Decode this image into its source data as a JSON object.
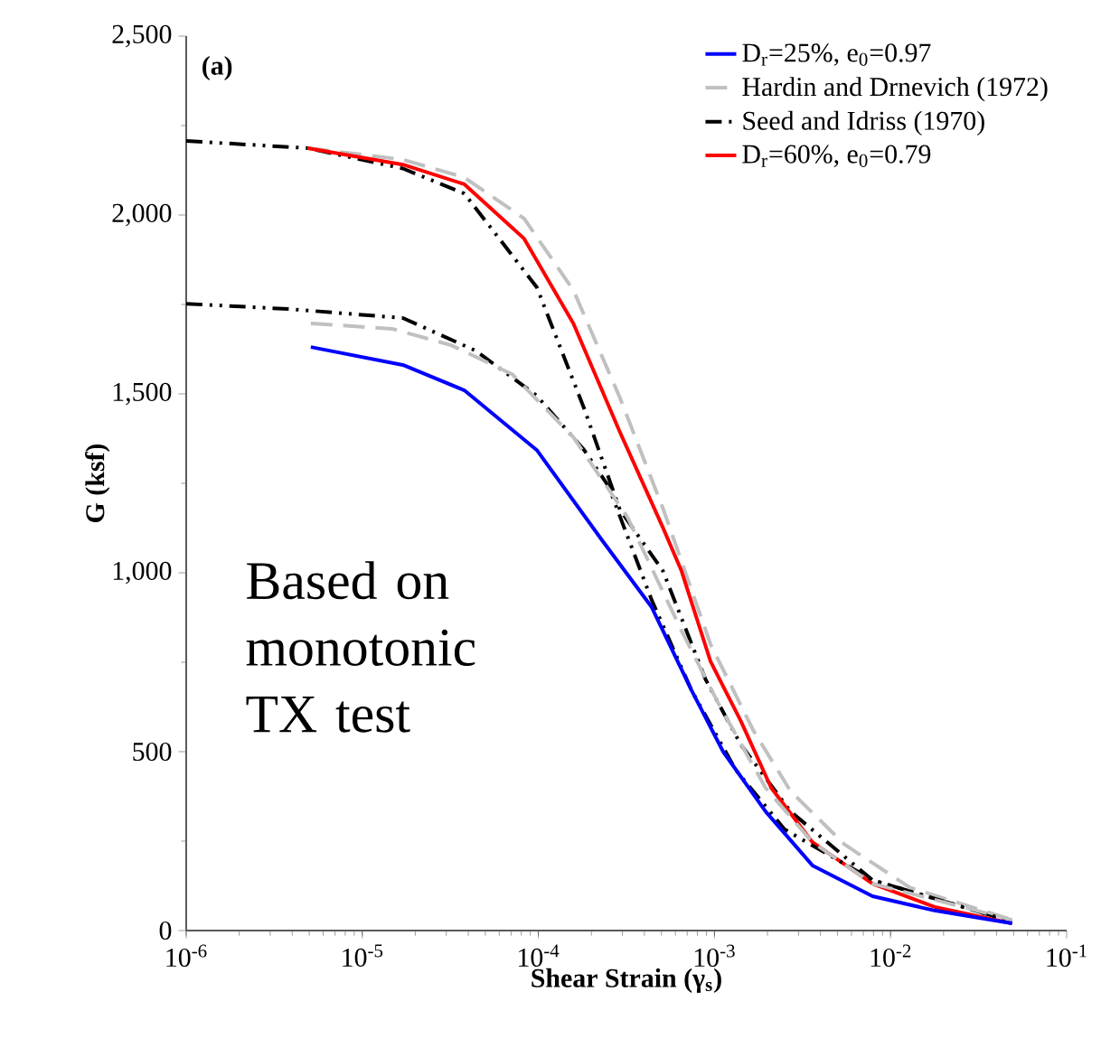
{
  "chart_data": {
    "type": "line",
    "xlabel": "Shear Strain (γ$_{s}$)",
    "ylabel": "G (ksf)",
    "log": "x",
    "xlim": [
      1e-06,
      0.1
    ],
    "ylim": [
      0,
      2500
    ],
    "xticks": [
      {
        "value": 1e-06,
        "label": "10$^{-6}$"
      },
      {
        "value": 1e-05,
        "label": "10$^{-5}$"
      },
      {
        "value": 0.0001,
        "label": "10$^{-4}$"
      },
      {
        "value": 0.001,
        "label": "10$^{-3}$"
      },
      {
        "value": 0.01,
        "label": "10$^{-2}$"
      },
      {
        "value": 0.1,
        "label": "10$^{-1}$"
      }
    ],
    "yticks": [
      0,
      500,
      {
        "value": 1000,
        "label": "1,000"
      },
      {
        "value": 1500,
        "label": "1,500"
      },
      {
        "value": 2000,
        "label": "2,000"
      },
      {
        "value": 2500,
        "label": "2,500"
      }
    ],
    "legend": "top right",
    "grid": false,
    "marker": "none",
    "annotations": [
      "(a)",
      "Based on monotonic TX test"
    ],
    "series": [
      {
        "name": "D$_{r}$=25%, e$_{0}$=0.97",
        "color": "#0000ff",
        "line_style": "solid",
        "x": [
          5.1e-06,
          1.7e-05,
          3.8e-05,
          9.8e-05,
          0.00023,
          0.00044,
          0.00074,
          0.00112,
          0.00195,
          0.0036,
          0.0079,
          0.0178,
          0.049
        ],
        "values": [
          1631,
          1581,
          1510,
          1343,
          1091,
          904,
          672,
          500,
          333,
          182,
          96,
          56,
          20
        ]
      },
      {
        "name": "Hardin and Drnevich (1972)",
        "color": "#c0c0c0",
        "line_style": "dashed",
        "x": [
          5.1e-06,
          1.48e-05,
          3.2e-05,
          7.1e-05,
          0.000158,
          0.00032,
          0.00065,
          0.00105,
          0.00195,
          0.0036,
          0.0079,
          0.049
        ],
        "values": [
          1697,
          1682,
          1636,
          1555,
          1379,
          1156,
          838,
          636,
          399,
          247,
          131,
          30
        ]
      },
      {
        "name": "Seed and Idriss (1970)",
        "color": "#000000",
        "line_style": "dashdotdot",
        "x": [
          1e-06,
          3.9e-06,
          1.7e-05,
          4.4e-05,
          9.8e-05,
          0.000182,
          0.00025,
          0.00044,
          0.00074,
          0.00132,
          0.0025,
          0.0079,
          0.049
        ],
        "values": [
          1752,
          1737,
          1712,
          1621,
          1495,
          1343,
          1242,
          924,
          672,
          449,
          283,
          141,
          25
        ]
      },
      {
        "name": "D$_{r}$=60%, e$_{0}$=0.79",
        "color": "#ff0000",
        "line_style": "solid",
        "x": [
          4.9e-06,
          1.7e-05,
          3.8e-05,
          8.3e-05,
          0.000158,
          0.00029,
          0.00051,
          0.00065,
          0.00095,
          0.00141,
          0.0021,
          0.0036,
          0.0079,
          0.0178,
          0.049
        ],
        "values": [
          2187,
          2141,
          2086,
          1934,
          1697,
          1394,
          1126,
          1005,
          752,
          586,
          399,
          247,
          131,
          66,
          20
        ]
      },
      {
        "color": "#c0c0c0",
        "line_style": "dashed",
        "x": [
          4.9e-06,
          1.7e-05,
          3.8e-05,
          8.3e-05,
          0.000158,
          0.00029,
          0.00051,
          0.00095,
          0.00166,
          0.0027,
          0.0055,
          0.0129,
          0.049
        ],
        "values": [
          2187,
          2155,
          2105,
          1990,
          1790,
          1490,
          1180,
          800,
          560,
          390,
          240,
          120,
          30
        ]
      },
      {
        "color": "#000000",
        "line_style": "dashdotdot",
        "x": [
          1e-06,
          4.9e-06,
          1.7e-05,
          3.8e-05,
          9.8e-05,
          0.000182,
          0.00029,
          0.00051,
          0.00089,
          0.00141,
          0.0027,
          0.0079,
          0.049
        ],
        "values": [
          2207,
          2187,
          2130,
          2060,
          1798,
          1459,
          1177,
          1005,
          702,
          520,
          333,
          141,
          25
        ]
      }
    ]
  }
}
